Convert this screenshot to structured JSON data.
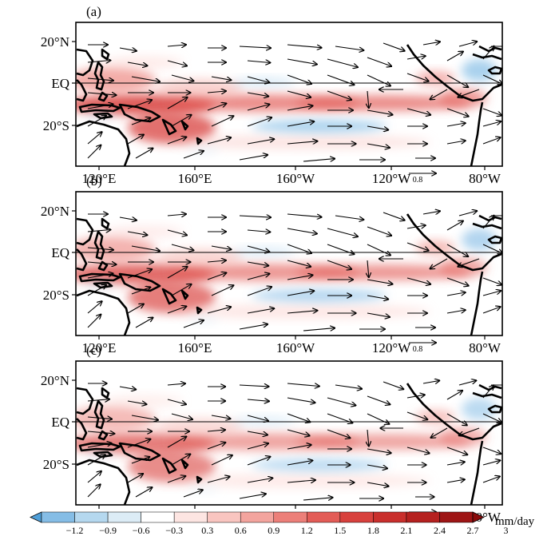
{
  "figure": {
    "panels": [
      {
        "id": "a",
        "label": "(a)"
      },
      {
        "id": "b",
        "label": "(b)"
      },
      {
        "id": "c",
        "label": "(c)"
      }
    ],
    "lon_ticks": [
      "120°E",
      "160°E",
      "160°W",
      "120°W",
      "80°W"
    ],
    "lat_ticks": [
      "20°N",
      "EQ",
      "20°S"
    ],
    "reference_vector": {
      "value": "0.8"
    },
    "colorbar": {
      "unit": "mm/day",
      "ticks": [
        "−1.2",
        "−0.9",
        "−0.6",
        "−0.3",
        "0.3",
        "0.6",
        "0.9",
        "1.2",
        "1.5",
        "1.8",
        "2.1",
        "2.4",
        "2.7",
        "3"
      ],
      "colors": [
        "#4f9fd8",
        "#85bde6",
        "#b5d8ef",
        "#dcecf6",
        "#ffffff",
        "#fde5e2",
        "#f9c5c0",
        "#f3a49e",
        "#ec7f79",
        "#e35c57",
        "#d8413d",
        "#c92f2c",
        "#b5211f",
        "#9e1515",
        "#8a0b0b"
      ]
    }
  }
}
